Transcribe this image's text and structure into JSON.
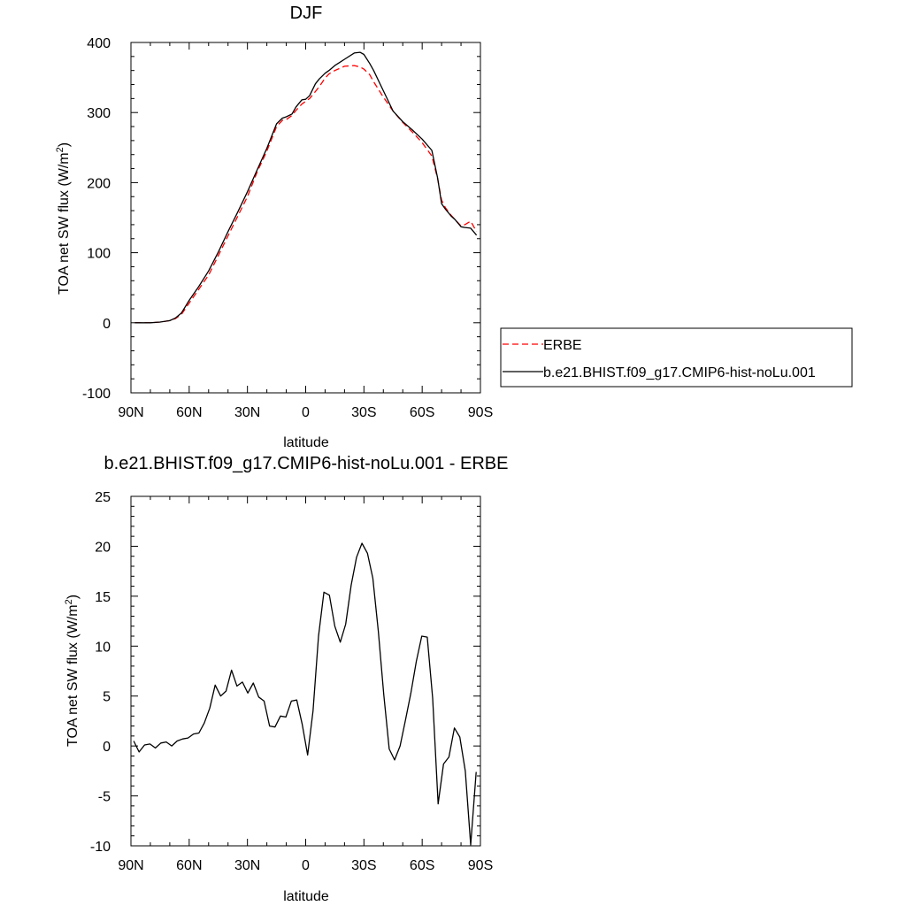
{
  "chart_data": [
    {
      "type": "line",
      "title": "DJF",
      "xlabel": "latitude",
      "ylabel": "TOA net SW flux (W/m",
      "ylabel_sup": "2",
      "ylabel_close": ")",
      "xlim": [
        90,
        -90
      ],
      "ylim": [
        -100,
        400
      ],
      "x_ticks": [
        {
          "v": 90,
          "label": "90N"
        },
        {
          "v": 60,
          "label": "60N"
        },
        {
          "v": 30,
          "label": "30N"
        },
        {
          "v": 0,
          "label": "0"
        },
        {
          "v": -30,
          "label": "30S"
        },
        {
          "v": -60,
          "label": "60S"
        },
        {
          "v": -90,
          "label": "90S"
        }
      ],
      "y_ticks": [
        400,
        300,
        200,
        100,
        0,
        -100
      ],
      "legend_position": "right",
      "series": [
        {
          "name": "ERBE",
          "color": "#ff0000",
          "dash": "dashed",
          "x": [
            88,
            85,
            80,
            75,
            70,
            67,
            64,
            60,
            55,
            50,
            45,
            40,
            35,
            30,
            25,
            20,
            15,
            12,
            10,
            7,
            5,
            2,
            0,
            -2,
            -5,
            -7,
            -10,
            -12,
            -15,
            -20,
            -25,
            -28,
            -30,
            -33,
            -35,
            -40,
            -45,
            -50,
            -55,
            -60,
            -65,
            -68,
            -70,
            -72,
            -75,
            -77,
            -80,
            -82,
            -85,
            -88
          ],
          "y": [
            0,
            0,
            0,
            1,
            3,
            6,
            12,
            28,
            48,
            68,
            96,
            124,
            152,
            180,
            215,
            245,
            280,
            289,
            290,
            296,
            303,
            312,
            316,
            320,
            330,
            337,
            349,
            355,
            360,
            366,
            367,
            365,
            362,
            354,
            344,
            322,
            302,
            286,
            272,
            257,
            238,
            205,
            175,
            164,
            153,
            147,
            138,
            140,
            145,
            130
          ]
        },
        {
          "name": "b.e21.BHIST.f09_g17.CMIP6-hist-noLu.001",
          "color": "#000000",
          "dash": "solid",
          "x": [
            88,
            85,
            80,
            75,
            70,
            67,
            64,
            60,
            55,
            50,
            45,
            40,
            35,
            30,
            25,
            20,
            15,
            12,
            10,
            7,
            5,
            2,
            0,
            -2,
            -5,
            -7,
            -10,
            -12,
            -15,
            -20,
            -25,
            -28,
            -30,
            -33,
            -35,
            -40,
            -45,
            -50,
            -55,
            -60,
            -65,
            -68,
            -70,
            -72,
            -75,
            -77,
            -80,
            -82,
            -85,
            -88
          ],
          "y": [
            0,
            0,
            0,
            1,
            3,
            7,
            14,
            32,
            52,
            74,
            101,
            130,
            158,
            187,
            218,
            249,
            284,
            292,
            294,
            298,
            308,
            318,
            319,
            324,
            341,
            348,
            356,
            360,
            367,
            376,
            385,
            386,
            383,
            370,
            360,
            331,
            302,
            287,
            275,
            262,
            246,
            206,
            170,
            162,
            152,
            147,
            137,
            136,
            135,
            125
          ]
        }
      ]
    },
    {
      "type": "line",
      "title": "b.e21.BHIST.f09_g17.CMIP6-hist-noLu.001 - ERBE",
      "xlabel": "latitude",
      "ylabel": "TOA net SW flux (W/m",
      "ylabel_sup": "2",
      "ylabel_close": ")",
      "xlim": [
        90,
        -90
      ],
      "ylim": [
        -10,
        25
      ],
      "x_ticks": [
        {
          "v": 90,
          "label": "90N"
        },
        {
          "v": 60,
          "label": "60N"
        },
        {
          "v": 30,
          "label": "30N"
        },
        {
          "v": 0,
          "label": "0"
        },
        {
          "v": -30,
          "label": "30S"
        },
        {
          "v": -60,
          "label": "60S"
        },
        {
          "v": -90,
          "label": "90S"
        }
      ],
      "y_ticks": [
        25,
        20,
        15,
        10,
        5,
        0,
        -5,
        -10
      ],
      "series": [
        {
          "color": "#000000",
          "dash": "solid",
          "x": [
            88.6,
            85.8,
            83,
            80.2,
            77.4,
            74.6,
            71.8,
            69,
            66.2,
            63.4,
            60.6,
            57.8,
            55,
            52.2,
            49.4,
            46.6,
            43.8,
            41,
            38.2,
            35.4,
            32.6,
            29.8,
            27,
            24.2,
            21.4,
            18.6,
            15.8,
            13,
            10.2,
            7.4,
            4.6,
            1.8,
            -1,
            -3.8,
            -6.6,
            -9.4,
            -12.2,
            -15,
            -17.8,
            -20.6,
            -23.4,
            -26.2,
            -29,
            -31.8,
            -34.6,
            -37.4,
            -40.2,
            -43,
            -45.8,
            -48.6,
            -51.4,
            -54.2,
            -57,
            -59.8,
            -62.6,
            -65.4,
            -68.2,
            -71,
            -73.8,
            -76.6,
            -79.4,
            -82.2,
            -85,
            -87.8
          ],
          "y": [
            0.5,
            -0.6,
            0.1,
            0.2,
            -0.2,
            0.3,
            0.4,
            0,
            0.5,
            0.7,
            0.8,
            1.2,
            1.3,
            2.3,
            3.8,
            6.1,
            5,
            5.5,
            7.6,
            6,
            6.4,
            5.3,
            6.3,
            4.9,
            4.5,
            2,
            1.9,
            3,
            2.9,
            4.5,
            4.6,
            2.2,
            -0.9,
            3.5,
            11,
            15.4,
            15.1,
            12,
            10.4,
            12.2,
            16.1,
            18.9,
            20.3,
            19.3,
            16.8,
            11.5,
            5.2,
            -0.3,
            -1.4,
            0,
            2.6,
            5.3,
            8.5,
            11,
            10.9,
            4.8,
            -5.8,
            -1.8,
            -1.1,
            1.8,
            0.9,
            -2.5,
            -9.9,
            -2.6
          ]
        }
      ]
    }
  ]
}
